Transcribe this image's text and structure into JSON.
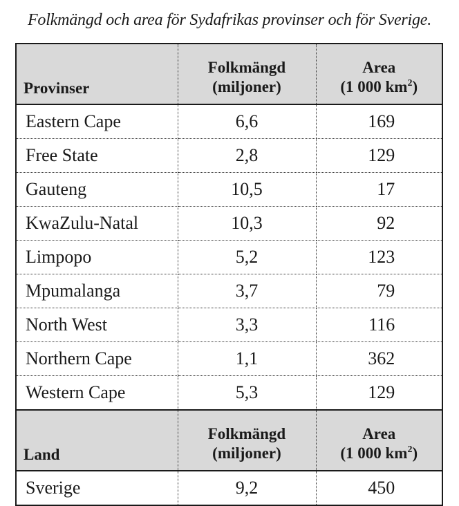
{
  "caption": "Folkmängd och area för Sydafrikas provinser och för Sverige.",
  "provinces_header": {
    "name_label": "Provinser",
    "population_label_line1": "Folkmängd",
    "population_label_line2": "(miljoner)",
    "area_label_line1": "Area",
    "area_label_line2_prefix": "(1 000 km",
    "area_label_exponent": "2",
    "area_label_suffix": ")"
  },
  "provinces": [
    {
      "name": "Eastern Cape",
      "population": "6,6",
      "area": "169"
    },
    {
      "name": "Free State",
      "population": "2,8",
      "area": "129"
    },
    {
      "name": "Gauteng",
      "population": "10,5",
      "area": "17"
    },
    {
      "name": "KwaZulu-Natal",
      "population": "10,3",
      "area": "92"
    },
    {
      "name": "Limpopo",
      "population": "5,2",
      "area": "123"
    },
    {
      "name": "Mpumalanga",
      "population": "3,7",
      "area": "79"
    },
    {
      "name": "North West",
      "population": "3,3",
      "area": "116"
    },
    {
      "name": "Northern Cape",
      "population": "1,1",
      "area": "362"
    },
    {
      "name": "Western Cape",
      "population": "5,3",
      "area": "129"
    }
  ],
  "country_header": {
    "name_label": "Land",
    "population_label_line1": "Folkmängd",
    "population_label_line2": "(miljoner)",
    "area_label_line1": "Area",
    "area_label_line2_prefix": "(1 000 km",
    "area_label_exponent": "2",
    "area_label_suffix": ")"
  },
  "countries": [
    {
      "name": "Sverige",
      "population": "9,2",
      "area": "450"
    }
  ],
  "colors": {
    "header_background": "#d9d9d9",
    "border": "#1a1a1a"
  }
}
